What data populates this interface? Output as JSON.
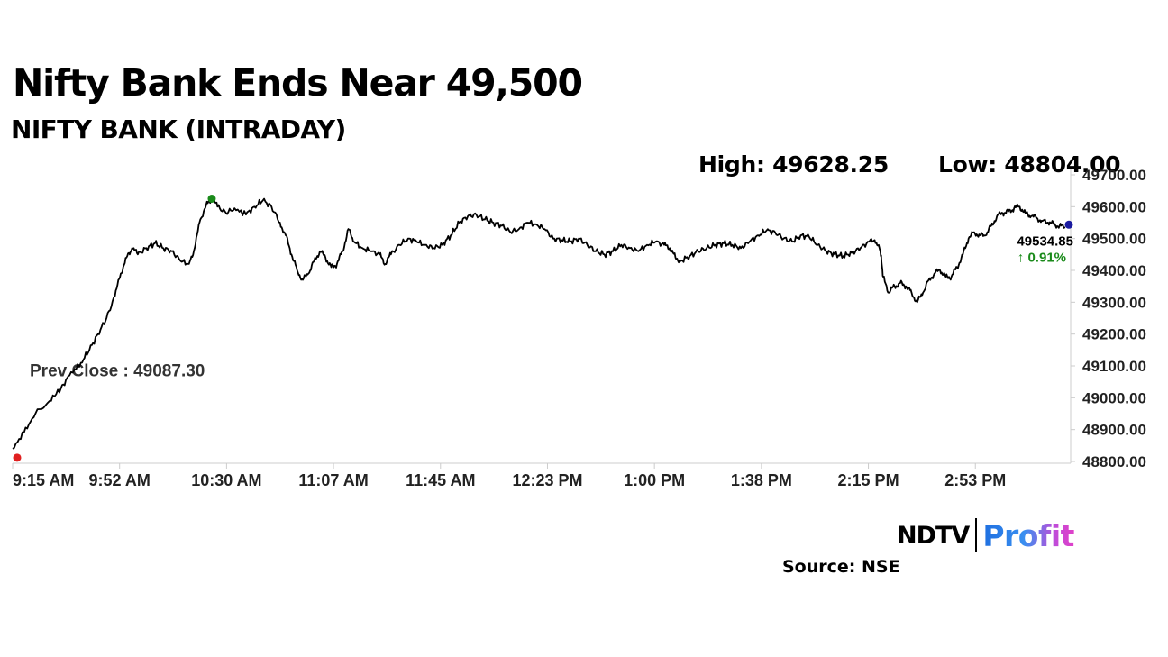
{
  "headline": "Nifty Bank Ends Near 49,500",
  "chart_data": {
    "type": "line",
    "subtitle": "NIFTY BANK (INTRADAY)",
    "high_label": "High: 49628.25",
    "low_label": "Low: 48804.00",
    "ylim": [
      48800,
      49700
    ],
    "y_ticks": [
      "49700.00",
      "49600.00",
      "49500.00",
      "49400.00",
      "49300.00",
      "49200.00",
      "49100.00",
      "49000.00",
      "48900.00",
      "48800.00"
    ],
    "x_ticks": [
      "9:15 AM",
      "9:52 AM",
      "10:30 AM",
      "11:07 AM",
      "11:45 AM",
      "12:23 PM",
      "1:00 PM",
      "1:38 PM",
      "2:15 PM",
      "2:53 PM"
    ],
    "prev_close": 49087.3,
    "prev_close_label": "Prev Close : 49087.30",
    "last_value_label": "49534.85",
    "change_label": "↑ 0.91%",
    "series": [
      {
        "points": [
          [
            0,
            48840
          ],
          [
            4,
            48890
          ],
          [
            8,
            48950
          ],
          [
            13,
            48990
          ],
          [
            17,
            49030
          ],
          [
            20,
            49070
          ],
          [
            24,
            49110
          ],
          [
            27,
            49150
          ],
          [
            30,
            49200
          ],
          [
            33,
            49250
          ],
          [
            36,
            49320
          ],
          [
            38,
            49390
          ],
          [
            40,
            49440
          ],
          [
            42,
            49470
          ],
          [
            44,
            49450
          ],
          [
            47,
            49470
          ],
          [
            50,
            49485
          ],
          [
            53,
            49470
          ],
          [
            56,
            49460
          ],
          [
            59,
            49430
          ],
          [
            62,
            49420
          ],
          [
            64,
            49470
          ],
          [
            66,
            49560
          ],
          [
            68,
            49605
          ],
          [
            70,
            49625
          ],
          [
            72,
            49600
          ],
          [
            75,
            49580
          ],
          [
            78,
            49595
          ],
          [
            82,
            49575
          ],
          [
            85,
            49600
          ],
          [
            88,
            49620
          ],
          [
            91,
            49600
          ],
          [
            94,
            49550
          ],
          [
            96,
            49510
          ],
          [
            98,
            49450
          ],
          [
            100,
            49400
          ],
          [
            102,
            49370
          ],
          [
            104,
            49390
          ],
          [
            106,
            49430
          ],
          [
            108,
            49460
          ],
          [
            110,
            49440
          ],
          [
            112,
            49410
          ],
          [
            114,
            49420
          ],
          [
            116,
            49460
          ],
          [
            118,
            49530
          ],
          [
            120,
            49490
          ],
          [
            123,
            49470
          ],
          [
            126,
            49460
          ],
          [
            129,
            49450
          ],
          [
            131,
            49420
          ],
          [
            133,
            49450
          ],
          [
            136,
            49480
          ],
          [
            139,
            49500
          ],
          [
            142,
            49490
          ],
          [
            145,
            49480
          ],
          [
            148,
            49470
          ],
          [
            151,
            49480
          ],
          [
            154,
            49510
          ],
          [
            157,
            49550
          ],
          [
            160,
            49570
          ],
          [
            163,
            49575
          ],
          [
            166,
            49560
          ],
          [
            169,
            49550
          ],
          [
            172,
            49540
          ],
          [
            175,
            49520
          ],
          [
            178,
            49530
          ],
          [
            181,
            49550
          ],
          [
            184,
            49545
          ],
          [
            187,
            49530
          ],
          [
            190,
            49500
          ],
          [
            193,
            49495
          ],
          [
            196,
            49490
          ],
          [
            199,
            49500
          ],
          [
            202,
            49480
          ],
          [
            205,
            49460
          ],
          [
            208,
            49450
          ],
          [
            211,
            49460
          ],
          [
            214,
            49480
          ],
          [
            217,
            49470
          ],
          [
            220,
            49460
          ],
          [
            223,
            49480
          ],
          [
            226,
            49490
          ],
          [
            229,
            49480
          ],
          [
            231,
            49470
          ],
          [
            233,
            49440
          ],
          [
            235,
            49430
          ],
          [
            238,
            49445
          ],
          [
            241,
            49460
          ],
          [
            244,
            49470
          ],
          [
            247,
            49480
          ],
          [
            250,
            49485
          ],
          [
            253,
            49480
          ],
          [
            256,
            49470
          ],
          [
            259,
            49490
          ],
          [
            262,
            49510
          ],
          [
            265,
            49525
          ],
          [
            268,
            49520
          ],
          [
            271,
            49500
          ],
          [
            274,
            49490
          ],
          [
            277,
            49510
          ],
          [
            280,
            49505
          ],
          [
            283,
            49480
          ],
          [
            286,
            49460
          ],
          [
            289,
            49450
          ],
          [
            292,
            49445
          ],
          [
            295,
            49455
          ],
          [
            298,
            49470
          ],
          [
            301,
            49490
          ],
          [
            303,
            49495
          ],
          [
            305,
            49460
          ],
          [
            306,
            49380
          ],
          [
            308,
            49330
          ],
          [
            310,
            49350
          ],
          [
            312,
            49360
          ],
          [
            314,
            49350
          ],
          [
            316,
            49330
          ],
          [
            318,
            49300
          ],
          [
            320,
            49330
          ],
          [
            322,
            49370
          ],
          [
            324,
            49390
          ],
          [
            326,
            49400
          ],
          [
            328,
            49380
          ],
          [
            330,
            49380
          ],
          [
            332,
            49410
          ],
          [
            334,
            49450
          ],
          [
            336,
            49500
          ],
          [
            338,
            49520
          ],
          [
            340,
            49510
          ],
          [
            342,
            49510
          ],
          [
            344,
            49540
          ],
          [
            346,
            49570
          ],
          [
            348,
            49580
          ],
          [
            350,
            49585
          ],
          [
            352,
            49595
          ],
          [
            354,
            49600
          ],
          [
            356,
            49580
          ],
          [
            358,
            49570
          ],
          [
            360,
            49565
          ],
          [
            362,
            49555
          ],
          [
            364,
            49550
          ],
          [
            366,
            49545
          ],
          [
            368,
            49540
          ],
          [
            370,
            49535
          ]
        ]
      }
    ]
  },
  "logo": {
    "ndtv": "NDTV",
    "profit": "Profit"
  },
  "source": "Source: NSE",
  "colors": {
    "line": "#000000",
    "high_marker": "#1a8a1a",
    "low_marker": "#e02020",
    "last_marker": "#1a1aa0",
    "prev_close_line": "#cc3333",
    "change": "#1a8a1a"
  }
}
